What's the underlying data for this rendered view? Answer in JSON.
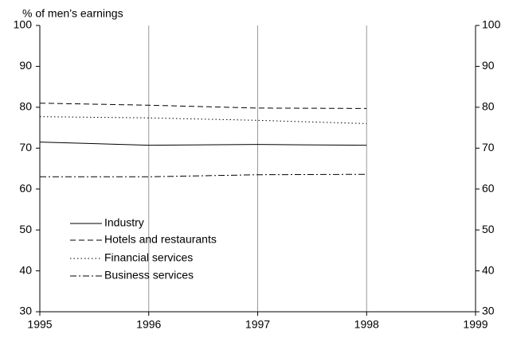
{
  "chart_data": {
    "type": "line",
    "y_label": "% of men’s earnings",
    "x": [
      1995,
      1996,
      1997,
      1998
    ],
    "series": [
      {
        "name": "Industry",
        "color": "#000000",
        "line_style": "solid",
        "values": [
          71.5,
          70.7,
          70.9,
          70.7
        ]
      },
      {
        "name": "Hotels and restaurants",
        "color": "#000000",
        "line_style": "dashed",
        "values": [
          81.0,
          80.5,
          79.8,
          79.7
        ]
      },
      {
        "name": "Financial services",
        "color": "#000000",
        "line_style": "dotted",
        "values": [
          77.7,
          77.4,
          76.8,
          76.0
        ]
      },
      {
        "name": "Business services",
        "color": "#000000",
        "line_style": "dashdot",
        "values": [
          63.0,
          63.0,
          63.5,
          63.6
        ]
      }
    ],
    "xlim": [
      1995,
      1999
    ],
    "xticks": [
      1995,
      1996,
      1997,
      1998,
      1999
    ],
    "ylim": [
      30,
      100
    ],
    "yticks": [
      30,
      40,
      50,
      60,
      70,
      80,
      90,
      100
    ],
    "y2lim": [
      30,
      100
    ],
    "y2ticks": [
      30,
      40,
      50,
      60,
      70,
      80,
      90,
      100
    ],
    "grid": "x",
    "grid_color": "#999999",
    "legend": "lower left"
  }
}
